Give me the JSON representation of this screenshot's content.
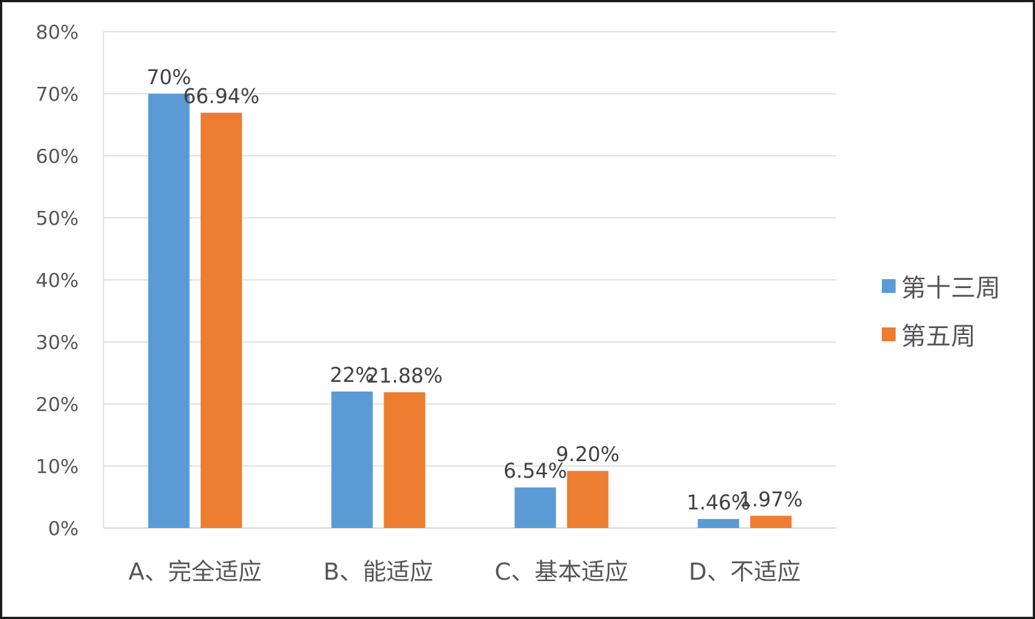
{
  "chart_data": {
    "type": "bar",
    "categories": [
      "A、完全适应",
      "B、能适应",
      "C、基本适应",
      "D、不适应"
    ],
    "series": [
      {
        "name": "第十三周",
        "color": "#5B9BD5",
        "values": [
          70,
          22,
          6.54,
          1.46
        ],
        "labels": [
          "70%",
          "22%",
          "6.54%",
          "1.46%"
        ]
      },
      {
        "name": "第五周",
        "color": "#ED7D31",
        "values": [
          66.94,
          21.88,
          9.2,
          1.97
        ],
        "labels": [
          "66.94%",
          "21.88%",
          "9.20%",
          "1.97%"
        ]
      }
    ],
    "yticks": [
      "0%",
      "10%",
      "20%",
      "30%",
      "40%",
      "50%",
      "60%",
      "70%",
      "80%"
    ],
    "ylim": [
      0,
      80
    ],
    "grid": true,
    "legend": "right"
  }
}
